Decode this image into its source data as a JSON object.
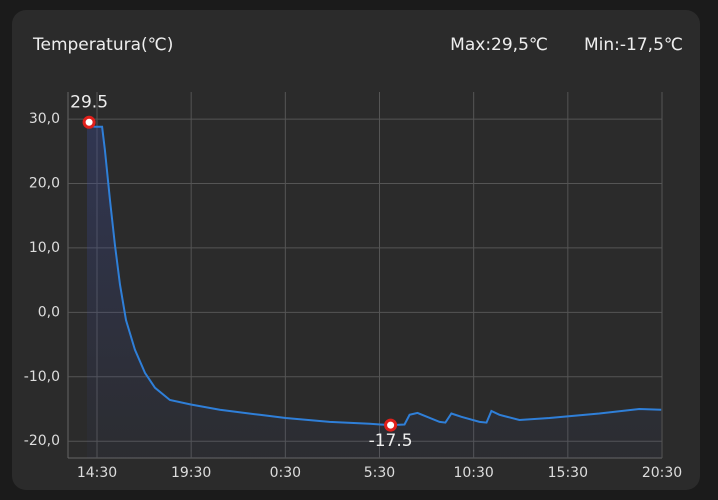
{
  "chart_data": {
    "type": "line",
    "title": "Temperatura(℃)",
    "stats": [
      "Max:29,5℃",
      "Min:-17,5℃"
    ],
    "x": [
      13.97,
      14.08,
      14.23,
      14.39,
      14.77,
      14.92,
      15.19,
      15.45,
      15.72,
      16.04,
      16.51,
      17.05,
      17.58,
      18.37,
      19.48,
      21.02,
      23.14,
      24.52,
      26.85,
      28.98,
      30.09,
      30.83,
      31.1,
      31.52,
      32.69,
      33.0,
      33.32,
      33.85,
      34.81,
      35.18,
      35.44,
      35.87,
      36.93,
      38.52,
      41.17,
      43.29,
      44.46
    ],
    "series": [
      {
        "color": "#2f7fd8",
        "values": [
          28.6,
          29.5,
          28.9,
          28.8,
          28.8,
          25.2,
          17.4,
          10.5,
          4.3,
          -1.2,
          -5.8,
          -9.4,
          -11.7,
          -13.6,
          -14.3,
          -15.1,
          -15.9,
          -16.4,
          -17.0,
          -17.3,
          -17.5,
          -17.4,
          -15.9,
          -15.6,
          -17.0,
          -17.1,
          -15.7,
          -16.2,
          -17.0,
          -17.1,
          -15.3,
          -15.9,
          -16.7,
          -16.4,
          -15.7,
          -15.0,
          -15.1
        ]
      }
    ],
    "annotations": [
      {
        "x": 14.08,
        "y": 29.5,
        "position": "above"
      },
      {
        "x": 30.09,
        "y": -17.5,
        "position": "below"
      }
    ],
    "xlim": [
      12.96,
      44.5
    ],
    "xticks": [
      {
        "value": 14.5,
        "label": "14:30"
      },
      {
        "value": 19.5,
        "label": "19:30"
      },
      {
        "value": 24.5,
        "label": "0:30"
      },
      {
        "value": 29.5,
        "label": "5:30"
      },
      {
        "value": 34.5,
        "label": "10:30"
      },
      {
        "value": 39.5,
        "label": "15:30"
      },
      {
        "value": 44.5,
        "label": "20:30"
      }
    ],
    "ylim": [
      -22.6,
      34.2
    ],
    "yticks": [
      {
        "value": 30,
        "label": "30,0"
      },
      {
        "value": 20,
        "label": "20,0"
      },
      {
        "value": 10,
        "label": "10,0"
      },
      {
        "value": 0,
        "label": "0,0"
      },
      {
        "value": -10,
        "label": "-10,0"
      },
      {
        "value": -20,
        "label": "-20,0"
      }
    ],
    "grid": true
  }
}
